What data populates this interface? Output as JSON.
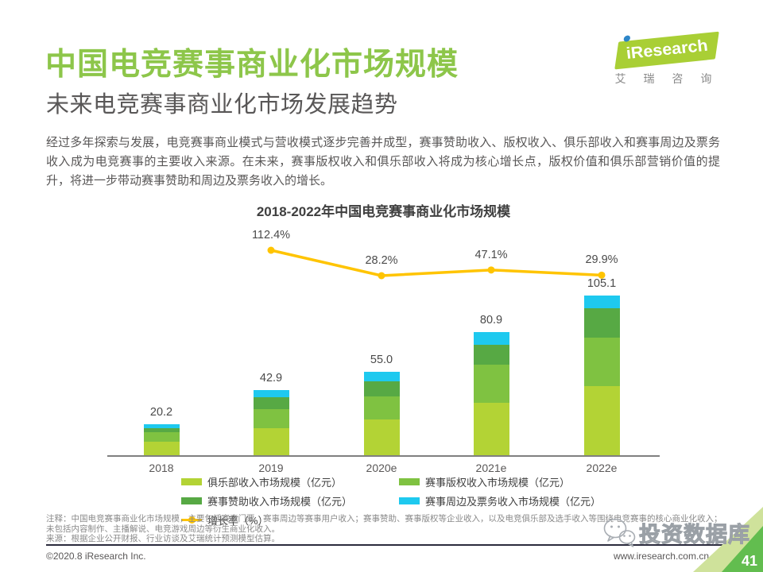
{
  "page": {
    "title": "中国电竞赛事商业化市场规模",
    "subtitle": "未来电竞赛事商业化市场发展趋势",
    "body_text": "经过多年探索与发展，电竞赛事商业模式与营收模式逐步完善并成型，赛事赞助收入、版权收入、俱乐部收入和赛事周边及票务收入成为电竞赛事的主要收入来源。在未来，赛事版权收入和俱乐部收入将成为核心增长点，版权价值和俱乐部营销价值的提升，将进一步带动赛事赞助和周边及票务收入的增长。",
    "page_number": "41"
  },
  "logo": {
    "brand": "iResearch",
    "caption": "艾 瑞 咨 询"
  },
  "chart_data": {
    "type": "bar",
    "subtype": "stacked-with-line",
    "title": "2018-2022年中国电竞赛事商业化市场规模",
    "categories": [
      "2018",
      "2019",
      "2020e",
      "2021e",
      "2022e"
    ],
    "totals": [
      20.2,
      42.9,
      55.0,
      80.9,
      105.1
    ],
    "value_labels": [
      "20.2",
      "42.9",
      "55.0",
      "80.9",
      "105.1"
    ],
    "series": [
      {
        "name": "俱乐部收入市场规模（亿元）",
        "color": "#b3d335",
        "values": [
          9.1,
          17.6,
          23.5,
          34.6,
          45.3
        ]
      },
      {
        "name": "赛事版权收入市场规模（亿元）",
        "color": "#7fc241",
        "values": [
          6.3,
          12.9,
          15.0,
          25.0,
          31.9
        ]
      },
      {
        "name": "赛事赞助收入市场规模（亿元）",
        "color": "#57a944",
        "values": [
          2.6,
          7.9,
          10.2,
          13.1,
          19.5
        ]
      },
      {
        "name": "赛事周边及票务收入市场规模（亿元）",
        "color": "#1ec9ef",
        "values": [
          2.2,
          4.5,
          6.3,
          8.2,
          8.4
        ]
      }
    ],
    "line_series": {
      "name": "增长率（%）",
      "color": "#ffc400",
      "values": [
        null,
        112.4,
        28.2,
        47.1,
        29.9
      ],
      "labels": [
        "",
        "112.4%",
        "28.2%",
        "47.1%",
        "29.9%"
      ]
    },
    "ylabel": "",
    "xlabel": "",
    "ylim": [
      0,
      115
    ],
    "grid": false,
    "y_axis_visible": false,
    "legend_position": "bottom"
  },
  "notes": {
    "line1": "注释：中国电竞赛事商业化市场规模，主要包括赛事门票、赛事周边等赛事用户收入；赛事赞助、赛事版权等企业收入，以及电竞俱乐部及选手收入等围绕电竞赛事的核心商业化收入；",
    "line2": "未包括内容制作、主播解说、电竞游戏周边等衍生商业化收入。",
    "line3": "来源：根据企业公开财报、行业访谈及艾瑞统计预测模型估算。"
  },
  "footer": {
    "copyright": "©2020.8 iResearch Inc.",
    "website": "www.iresearch.com.cn"
  },
  "watermark": {
    "text": "投资数据库"
  },
  "colors": {
    "title_green": "#8dc64a",
    "logo_green": "#a9cf35",
    "logo_dot_blue": "#2e86c8",
    "club": "#b3d335",
    "copyright_income": "#7fc241",
    "sponsor": "#57a944",
    "tickets": "#1ec9ef",
    "growth_line": "#ffc400",
    "body_text": "#595757",
    "corner_light": "#cfe29b",
    "corner_green": "#62bd4f"
  }
}
